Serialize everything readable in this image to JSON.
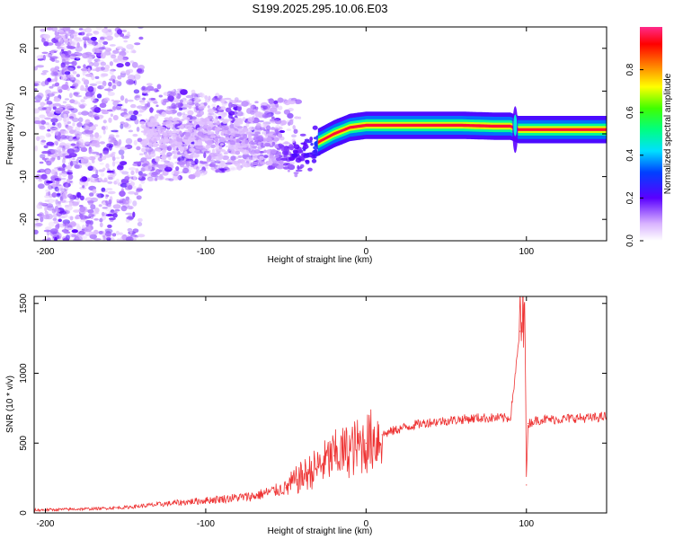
{
  "title": "S199.2025.295.10.06.E03",
  "chart_data": [
    {
      "type": "heatmap",
      "xlabel": "Height of straight line (km)",
      "ylabel": "Frequency (Hz)",
      "xlim": [
        -207,
        150
      ],
      "ylim": [
        -25,
        25
      ],
      "xticks": [
        -200,
        -100,
        0,
        100
      ],
      "yticks": [
        -20,
        -10,
        0,
        10,
        20
      ],
      "colorbar": {
        "label": "Normalized spectral amplitude",
        "range": [
          0.0,
          1.0
        ],
        "ticks": [
          0.0,
          0.2,
          0.4,
          0.6,
          0.8
        ],
        "tick_labels": [
          "0.0",
          "0.2",
          "0.4",
          "0.6",
          "0.8"
        ]
      },
      "ridge": {
        "description": "frequency of the main spectral ridge vs height",
        "x": [
          -135,
          -120,
          -100,
          -80,
          -60,
          -50,
          -40,
          -30,
          -20,
          -10,
          0,
          20,
          40,
          60,
          80,
          90,
          95,
          100,
          120,
          150
        ],
        "y": [
          -1.5,
          -0.5,
          0.5,
          -1,
          -3,
          -5,
          -5,
          -2,
          0,
          1.5,
          2,
          2,
          2,
          2,
          1.8,
          1.8,
          1,
          1,
          1,
          1
        ],
        "amplitude": [
          0.1,
          0.12,
          0.15,
          0.15,
          0.2,
          0.3,
          0.35,
          0.5,
          0.7,
          0.85,
          0.95,
          0.95,
          0.95,
          0.95,
          0.9,
          0.9,
          0.9,
          0.95,
          0.95,
          0.95
        ]
      }
    },
    {
      "type": "line",
      "xlabel": "Height of straight line (km)",
      "ylabel": "SNR (10 * v/v)",
      "xlim": [
        -207,
        150
      ],
      "ylim": [
        0,
        1550
      ],
      "xticks": [
        -200,
        -100,
        0,
        100
      ],
      "yticks": [
        0,
        500,
        1000,
        1500
      ],
      "color": "#ee3333",
      "series": [
        {
          "name": "SNR",
          "x": [
            -207,
            -190,
            -170,
            -150,
            -130,
            -110,
            -90,
            -70,
            -60,
            -50,
            -40,
            -30,
            -20,
            -10,
            0,
            10,
            20,
            30,
            40,
            50,
            60,
            70,
            80,
            90,
            96,
            99,
            100,
            101,
            105,
            110,
            120,
            130,
            140,
            150
          ],
          "y": [
            20,
            25,
            30,
            40,
            60,
            80,
            100,
            120,
            150,
            180,
            260,
            330,
            410,
            450,
            500,
            560,
            600,
            630,
            650,
            660,
            670,
            680,
            680,
            680,
            1300,
            1550,
            200,
            640,
            660,
            670,
            670,
            680,
            680,
            690
          ]
        }
      ]
    }
  ],
  "colors": {
    "line": "#ee3333",
    "frame": "#000000",
    "background": "#ffffff"
  }
}
